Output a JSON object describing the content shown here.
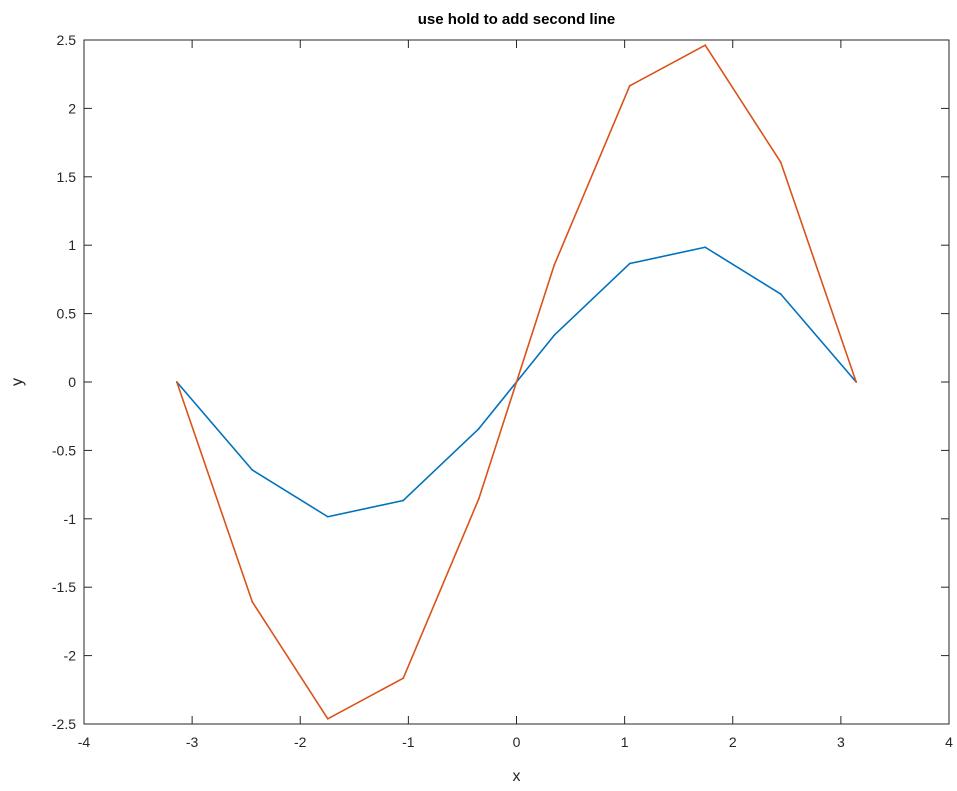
{
  "chart_data": {
    "type": "line",
    "title": "use hold to add second line",
    "xlabel": "x",
    "ylabel": "y",
    "xlim": [
      -4,
      4
    ],
    "ylim": [
      -2.5,
      2.5
    ],
    "xticks": [
      -4,
      -3,
      -2,
      -1,
      0,
      1,
      2,
      3,
      4
    ],
    "yticks": [
      -2.5,
      -2,
      -1.5,
      -1,
      -0.5,
      0,
      0.5,
      1,
      1.5,
      2,
      2.5
    ],
    "xtick_labels": [
      "-4",
      "-3",
      "-2",
      "-1",
      "0",
      "1",
      "2",
      "3",
      "4"
    ],
    "ytick_labels": [
      "-2.5",
      "-2",
      "-1.5",
      "-1",
      "-0.5",
      "0",
      "0.5",
      "1",
      "1.5",
      "2",
      "2.5"
    ],
    "grid": false,
    "box": true,
    "x": [
      -3.1416,
      -2.4435,
      -1.7453,
      -1.0472,
      -0.3491,
      0,
      0.3491,
      1.0472,
      1.7453,
      2.4435,
      3.1416
    ],
    "series": [
      {
        "color": "#0072bd",
        "values": [
          0,
          -0.643,
          -0.985,
          -0.866,
          -0.342,
          0,
          0.342,
          0.866,
          0.985,
          0.643,
          0
        ]
      },
      {
        "color": "#d95319",
        "values": [
          0,
          -1.607,
          -2.462,
          -2.165,
          -0.855,
          0,
          0.855,
          2.165,
          2.462,
          1.607,
          0
        ]
      }
    ]
  }
}
